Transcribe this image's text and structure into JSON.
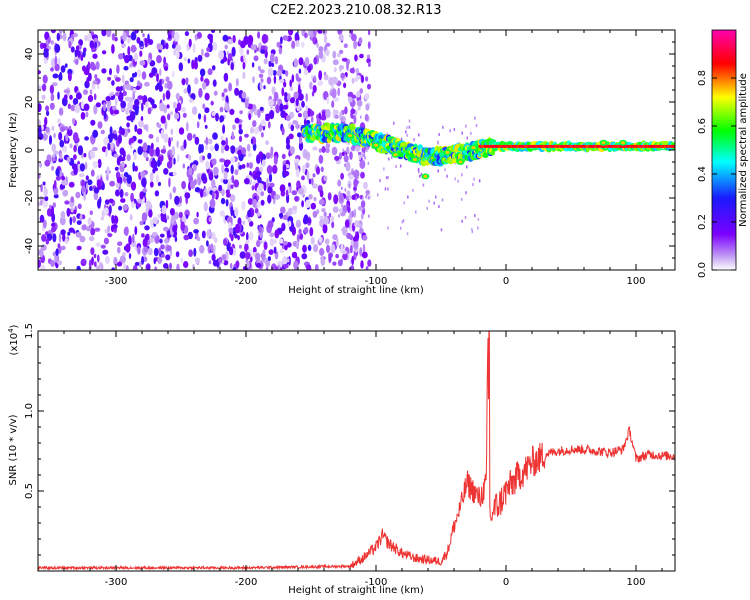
{
  "title": "C2E2.2023.210.08.32.R13",
  "colors": {
    "snr_line": "#ee3333",
    "cmap": [
      "#ffffff",
      "#c0a0f0",
      "#7a00ff",
      "#1a1aff",
      "#00ffff",
      "#00ff00",
      "#ffff00",
      "#ff0000",
      "#ff00b0"
    ]
  },
  "chart_data": [
    {
      "type": "heatmap",
      "title": "",
      "xlabel": "Height of straight line (km)",
      "ylabel": "Frequency (Hz)",
      "xlim": [
        -360,
        130
      ],
      "ylim": [
        -50,
        50
      ],
      "x_ticks": [
        -300,
        -200,
        -100,
        0,
        100
      ],
      "x_tick_labels": [
        "-300",
        "-200",
        "-100",
        "0",
        "100"
      ],
      "y_ticks": [
        -40,
        -20,
        0,
        20,
        40
      ],
      "y_tick_labels": [
        "-40",
        "-20",
        "0",
        "20",
        "40"
      ],
      "regions": [
        {
          "name": "noise",
          "x_range": [
            -360,
            -125
          ],
          "y_range": [
            -50,
            50
          ],
          "amplitude_range": [
            0.0,
            0.25
          ]
        },
        {
          "name": "echo-trace",
          "x_range": [
            -155,
            130
          ],
          "y_range": [
            -12,
            8
          ],
          "amplitude_range": [
            0.3,
            0.95
          ]
        },
        {
          "name": "doppler-line",
          "x_range": [
            -20,
            130
          ],
          "y_range": [
            1,
            2
          ],
          "amplitude_range": [
            0.7,
            0.95
          ]
        }
      ],
      "colorbar": {
        "label": "Normalized spectral amplitude",
        "range": [
          0.0,
          1.0
        ],
        "ticks": [
          0.0,
          0.2,
          0.4,
          0.6,
          0.8
        ],
        "tick_labels": [
          "0.0",
          "0.2",
          "0.4",
          "0.6",
          "0.8"
        ]
      }
    },
    {
      "type": "line",
      "title": "",
      "xlabel": "Height of straight line (km)",
      "ylabel": "SNR (10 * v/v)",
      "y_scale_label": "(x10",
      "y_scale_exp": "4",
      "xlim": [
        -360,
        130
      ],
      "ylim": [
        0,
        1.5
      ],
      "x_ticks": [
        -300,
        -200,
        -100,
        0,
        100
      ],
      "x_tick_labels": [
        "-300",
        "-200",
        "-100",
        "0",
        "100"
      ],
      "y_ticks": [
        0.5,
        1.0,
        1.5
      ],
      "y_tick_labels": [
        "0.5",
        "1.0",
        "1.5"
      ],
      "series": [
        {
          "x": [
            -360,
            -300,
            -200,
            -120,
            -110,
            -100,
            -95,
            -90,
            -80,
            -70,
            -60,
            -50,
            -45,
            -40,
            -35,
            -30,
            -25,
            -20,
            -15,
            -14,
            -13,
            -12,
            -10,
            -5,
            0,
            5,
            10,
            15,
            20,
            25,
            30,
            40,
            50,
            60,
            70,
            80,
            90,
            95,
            100,
            110,
            120,
            130
          ],
          "y": [
            0.02,
            0.02,
            0.02,
            0.03,
            0.08,
            0.15,
            0.22,
            0.17,
            0.11,
            0.08,
            0.07,
            0.06,
            0.12,
            0.28,
            0.4,
            0.55,
            0.5,
            0.45,
            0.55,
            1.5,
            0.6,
            0.3,
            0.38,
            0.42,
            0.5,
            0.55,
            0.6,
            0.63,
            0.68,
            0.7,
            0.73,
            0.75,
            0.76,
            0.76,
            0.75,
            0.74,
            0.76,
            0.88,
            0.7,
            0.73,
            0.72,
            0.72
          ]
        }
      ]
    }
  ]
}
